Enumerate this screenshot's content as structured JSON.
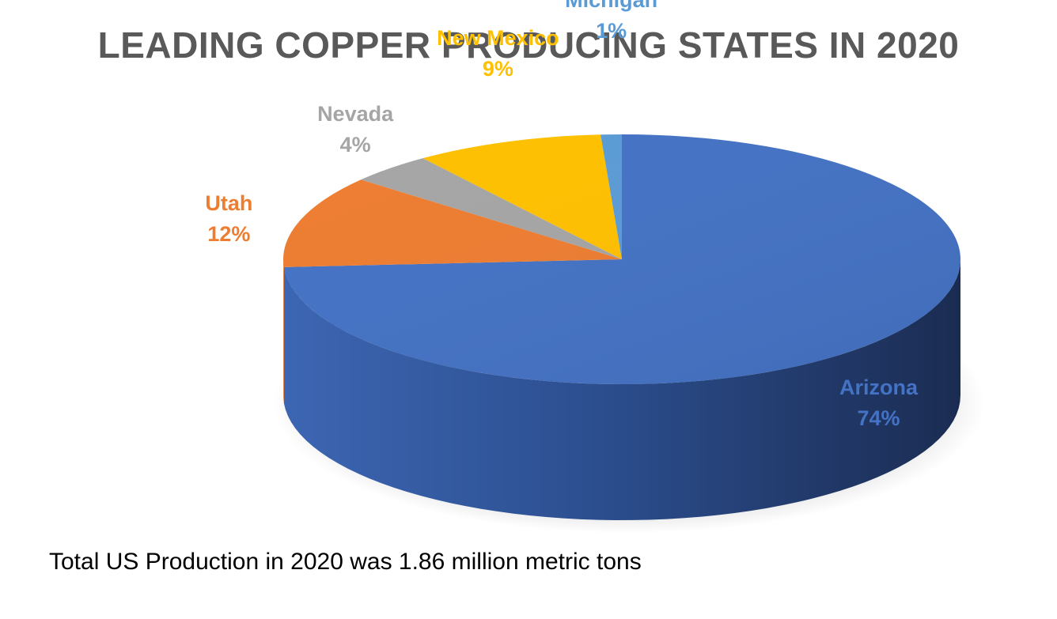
{
  "chart_data": {
    "type": "pie",
    "title": "LEADING COPPER PRODUCING STATES IN 2020",
    "categories": [
      "Arizona",
      "Utah",
      "Nevada",
      "New Mexico",
      "Michigan"
    ],
    "values": [
      74,
      12,
      4,
      9,
      1
    ],
    "unit": "%",
    "colors": {
      "Arizona": "#4472C4",
      "Utah": "#ED7D31",
      "Nevada": "#A5A5A5",
      "New Mexico": "#FFC000",
      "Michigan": "#5B9BD5"
    },
    "style": "3d",
    "labels": [
      {
        "name": "Arizona",
        "value": "74%"
      },
      {
        "name": "Utah",
        "value": "12%"
      },
      {
        "name": "Nevada",
        "value": "4%"
      },
      {
        "name": "New Mexico",
        "value": "9%"
      },
      {
        "name": "Michigan",
        "value": "1%"
      }
    ],
    "footnote": "Total US Production in 2020 was 1.86 million metric tons"
  }
}
